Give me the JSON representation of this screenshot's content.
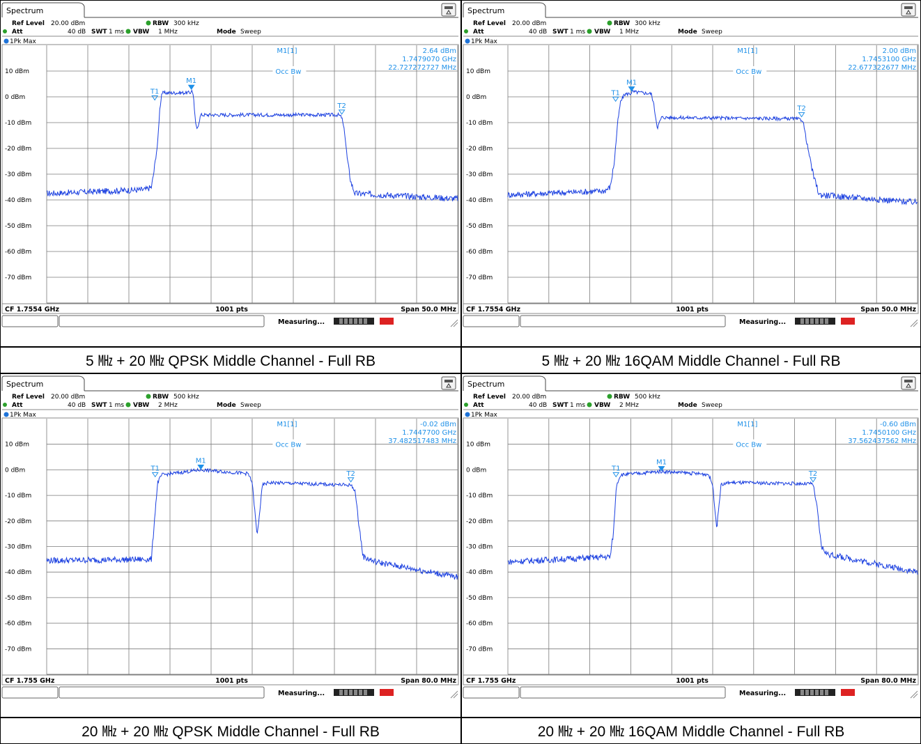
{
  "panels": [
    {
      "caption": "5 ㎒ + 20 ㎒ QPSK Middle Channel - Full RB",
      "tab": "Spectrum",
      "ref_level_label": "Ref Level",
      "ref_level": "20.00 dBm",
      "att_label": "Att",
      "att": "40 dB",
      "swt_label": "SWT",
      "swt": "1 ms",
      "rbw_label": "RBW",
      "rbw": "300 kHz",
      "vbw_label": "VBW",
      "vbw": "1 MHz",
      "mode_label": "Mode",
      "mode": "Sweep",
      "trace": "1Pk Max",
      "marker_name": "M1[1]",
      "marker_level": "2.64 dBm",
      "marker_freq": "1.7479070 GHz",
      "occ_label": "Occ Bw",
      "occ_bw": "22.727272727 MHz",
      "cf": "CF 1.7554 GHz",
      "pts": "1001 pts",
      "span": "Span 50.0 MHz",
      "status": "Measuring..."
    },
    {
      "caption": "5 ㎒ + 20 ㎒ 16QAM Middle Channel - Full RB",
      "tab": "Spectrum",
      "ref_level_label": "Ref Level",
      "ref_level": "20.00 dBm",
      "att_label": "Att",
      "att": "40 dB",
      "swt_label": "SWT",
      "swt": "1 ms",
      "rbw_label": "RBW",
      "rbw": "300 kHz",
      "vbw_label": "VBW",
      "vbw": "1 MHz",
      "mode_label": "Mode",
      "mode": "Sweep",
      "trace": "1Pk Max",
      "marker_name": "M1[1]",
      "marker_level": "2.00 dBm",
      "marker_freq": "1.7453100 GHz",
      "occ_label": "Occ Bw",
      "occ_bw": "22.677322677 MHz",
      "cf": "CF 1.7554 GHz",
      "pts": "1001 pts",
      "span": "Span 50.0 MHz",
      "status": "Measuring..."
    },
    {
      "caption": "20 ㎒ + 20 ㎒ QPSK Middle Channel - Full RB",
      "tab": "Spectrum",
      "ref_level_label": "Ref Level",
      "ref_level": "20.00 dBm",
      "att_label": "Att",
      "att": "40 dB",
      "swt_label": "SWT",
      "swt": "1 ms",
      "rbw_label": "RBW",
      "rbw": "500 kHz",
      "vbw_label": "VBW",
      "vbw": "2 MHz",
      "mode_label": "Mode",
      "mode": "Sweep",
      "trace": "1Pk Max",
      "marker_name": "M1[1]",
      "marker_level": "-0.02 dBm",
      "marker_freq": "1.7447700 GHz",
      "occ_label": "Occ Bw",
      "occ_bw": "37.482517483 MHz",
      "cf": "CF 1.755 GHz",
      "pts": "1001 pts",
      "span": "Span 80.0 MHz",
      "status": "Measuring..."
    },
    {
      "caption": "20 ㎒ + 20 ㎒ 16QAM Middle Channel - Full RB",
      "tab": "Spectrum",
      "ref_level_label": "Ref Level",
      "ref_level": "20.00 dBm",
      "att_label": "Att",
      "att": "40 dB",
      "swt_label": "SWT",
      "swt": "1 ms",
      "rbw_label": "RBW",
      "rbw": "500 kHz",
      "vbw_label": "VBW",
      "vbw": "2 MHz",
      "mode_label": "Mode",
      "mode": "Sweep",
      "trace": "1Pk Max",
      "marker_name": "M1[1]",
      "marker_level": "-0.60 dBm",
      "marker_freq": "1.7450100 GHz",
      "occ_label": "Occ Bw",
      "occ_bw": "37.562437562 MHz",
      "cf": "CF 1.755 GHz",
      "pts": "1001 pts",
      "span": "Span 80.0 MHz",
      "status": "Measuring..."
    }
  ],
  "colors": {
    "trace": "#1a3fe0",
    "marker": "#1e90e8",
    "grid": "#7a7a7a"
  },
  "chart_data": [
    {
      "type": "line",
      "ylabel_ticks": [
        "10 dBm",
        "0 dBm",
        "-10 dBm",
        "-20 dBm",
        "-30 dBm",
        "-40 dBm",
        "-50 dBm",
        "-60 dBm",
        "-70 dBm"
      ],
      "ylim": [
        -80,
        20
      ],
      "xlim": [
        0,
        10
      ],
      "center_frequency": "1.7554 GHz",
      "span": "50.0 MHz",
      "series": [
        {
          "points": [
            [
              0,
              -37.5
            ],
            [
              2.4,
              -36
            ],
            [
              2.55,
              -35
            ],
            [
              2.6,
              -30
            ],
            [
              2.7,
              -18
            ],
            [
              2.75,
              -5
            ],
            [
              2.8,
              1.5
            ],
            [
              3.5,
              1.6
            ],
            [
              3.52,
              2.64
            ],
            [
              3.57,
              1
            ],
            [
              3.6,
              -7
            ],
            [
              3.65,
              -13
            ],
            [
              3.75,
              -7
            ],
            [
              7.1,
              -7
            ],
            [
              7.18,
              -8
            ],
            [
              7.25,
              -14
            ],
            [
              7.32,
              -25
            ],
            [
              7.4,
              -33
            ],
            [
              7.5,
              -37.5
            ],
            [
              10,
              -39.5
            ]
          ]
        }
      ],
      "markers": [
        {
          "label": "T1",
          "x": 2.63,
          "y": -1.5
        },
        {
          "label": "M1",
          "x": 3.52,
          "y": 2.64
        },
        {
          "label": "T2",
          "x": 7.18,
          "y": -7
        }
      ]
    },
    {
      "type": "line",
      "ylabel_ticks": [
        "10 dBm",
        "0 dBm",
        "-10 dBm",
        "-20 dBm",
        "-30 dBm",
        "-40 dBm",
        "-50 dBm",
        "-60 dBm",
        "-70 dBm"
      ],
      "ylim": [
        -80,
        20
      ],
      "xlim": [
        0,
        10
      ],
      "center_frequency": "1.7554 GHz",
      "span": "50.0 MHz",
      "series": [
        {
          "points": [
            [
              0,
              -38
            ],
            [
              2.35,
              -36.5
            ],
            [
              2.5,
              -35
            ],
            [
              2.6,
              -25
            ],
            [
              2.68,
              -10
            ],
            [
              2.75,
              -2
            ],
            [
              2.85,
              1
            ],
            [
              3.0,
              1.3
            ],
            [
              3.02,
              2.0
            ],
            [
              3.5,
              1.2
            ],
            [
              3.55,
              -2
            ],
            [
              3.65,
              -12
            ],
            [
              3.75,
              -8
            ],
            [
              7.0,
              -8.5
            ],
            [
              7.2,
              -9
            ],
            [
              7.3,
              -18
            ],
            [
              7.45,
              -30
            ],
            [
              7.6,
              -38
            ],
            [
              10,
              -41
            ]
          ]
        }
      ],
      "markers": [
        {
          "label": "T1",
          "x": 2.63,
          "y": -2
        },
        {
          "label": "M1",
          "x": 3.02,
          "y": 2.0
        },
        {
          "label": "T2",
          "x": 7.17,
          "y": -8
        }
      ]
    },
    {
      "type": "line",
      "ylabel_ticks": [
        "10 dBm",
        "0 dBm",
        "-10 dBm",
        "-20 dBm",
        "-30 dBm",
        "-40 dBm",
        "-50 dBm",
        "-60 dBm",
        "-70 dBm"
      ],
      "ylim": [
        -80,
        20
      ],
      "xlim": [
        0,
        10
      ],
      "center_frequency": "1.755 GHz",
      "span": "80.0 MHz",
      "series": [
        {
          "points": [
            [
              0,
              -35.5
            ],
            [
              2.55,
              -35
            ],
            [
              2.62,
              -20
            ],
            [
              2.7,
              -5
            ],
            [
              2.8,
              -2
            ],
            [
              3.75,
              -0.02
            ],
            [
              4.9,
              -1.5
            ],
            [
              5.0,
              -5
            ],
            [
              5.12,
              -26
            ],
            [
              5.25,
              -6
            ],
            [
              5.4,
              -5
            ],
            [
              7.4,
              -6
            ],
            [
              7.5,
              -8
            ],
            [
              7.6,
              -22
            ],
            [
              7.7,
              -34
            ],
            [
              8.0,
              -36
            ],
            [
              10,
              -42
            ]
          ]
        }
      ],
      "markers": [
        {
          "label": "T1",
          "x": 2.64,
          "y": -3
        },
        {
          "label": "M1",
          "x": 3.75,
          "y": -0.02
        },
        {
          "label": "T2",
          "x": 7.4,
          "y": -5
        }
      ]
    },
    {
      "type": "line",
      "ylabel_ticks": [
        "10 dBm",
        "0 dBm",
        "-10 dBm",
        "-20 dBm",
        "-30 dBm",
        "-40 dBm",
        "-50 dBm",
        "-60 dBm",
        "-70 dBm"
      ],
      "ylim": [
        -80,
        20
      ],
      "xlim": [
        0,
        10
      ],
      "center_frequency": "1.755 GHz",
      "span": "80.0 MHz",
      "series": [
        {
          "points": [
            [
              0,
              -36
            ],
            [
              2.5,
              -34
            ],
            [
              2.58,
              -24
            ],
            [
              2.65,
              -6
            ],
            [
              2.75,
              -2
            ],
            [
              3.75,
              -0.6
            ],
            [
              4.9,
              -1.8
            ],
            [
              5.0,
              -6
            ],
            [
              5.1,
              -23
            ],
            [
              5.2,
              -6
            ],
            [
              5.4,
              -5
            ],
            [
              7.45,
              -5.5
            ],
            [
              7.55,
              -15
            ],
            [
              7.65,
              -30
            ],
            [
              7.8,
              -33
            ],
            [
              10,
              -40
            ]
          ]
        }
      ],
      "markers": [
        {
          "label": "T1",
          "x": 2.64,
          "y": -3
        },
        {
          "label": "M1",
          "x": 3.75,
          "y": -0.6
        },
        {
          "label": "T2",
          "x": 7.45,
          "y": -5
        }
      ]
    }
  ]
}
